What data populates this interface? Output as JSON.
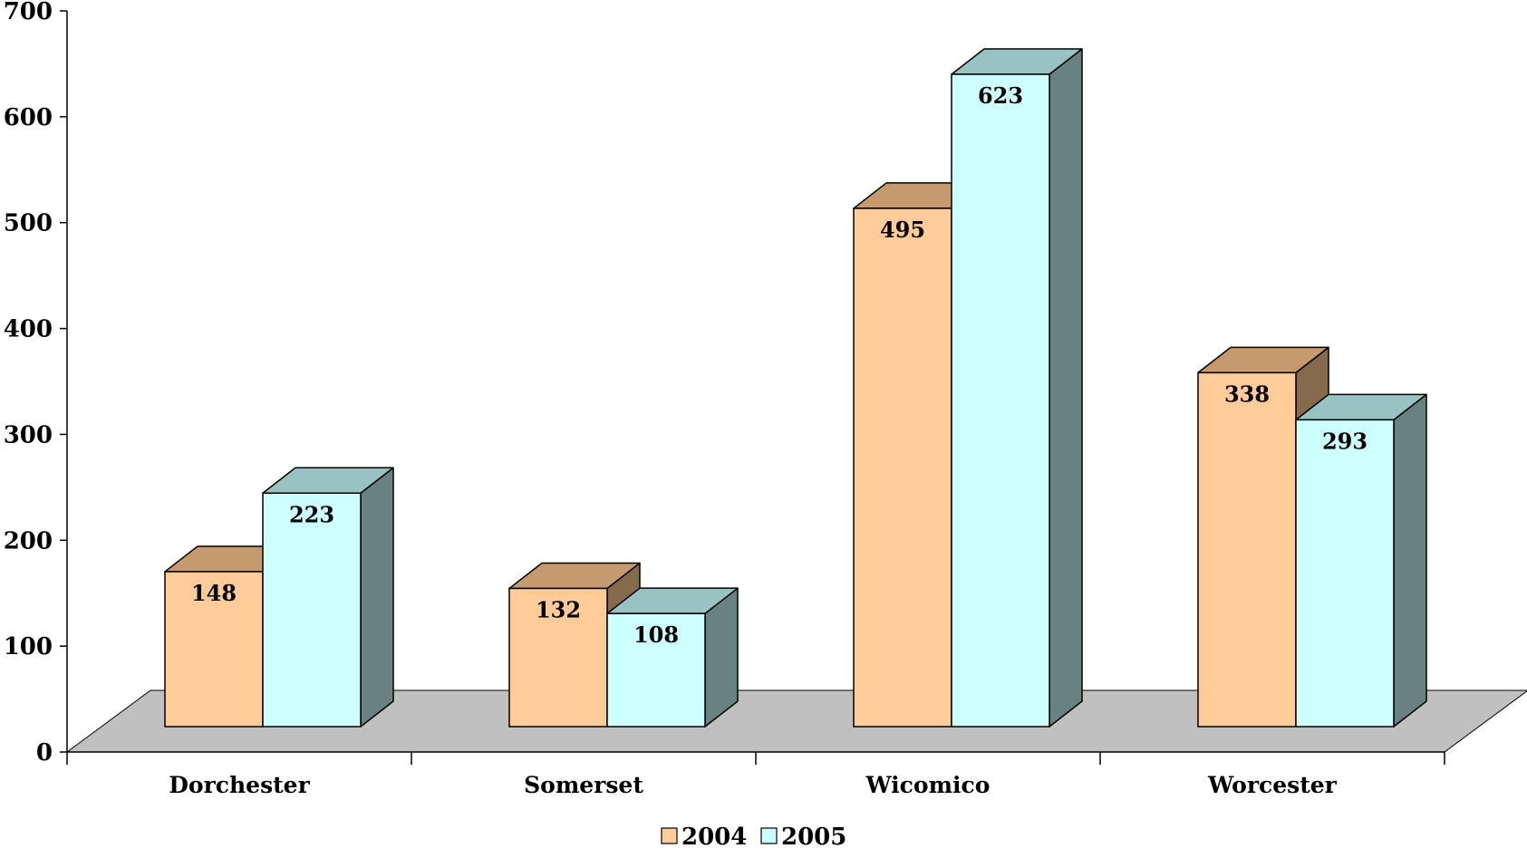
{
  "chart_data": {
    "type": "bar",
    "title": "",
    "xlabel": "",
    "ylabel": "",
    "categories": [
      "Dorchester",
      "Somerset",
      "Wicomico",
      "Worcester"
    ],
    "series": [
      {
        "name": "2004",
        "values": [
          148,
          132,
          495,
          338
        ],
        "color": "#FFCC99",
        "top_color": "#C49A6E",
        "side_color": "#856A4C"
      },
      {
        "name": "2005",
        "values": [
          223,
          108,
          623,
          293
        ],
        "color": "#CCFFFF",
        "top_color": "#99C2C2",
        "side_color": "#688282"
      }
    ],
    "ylim": [
      0,
      700
    ],
    "yticks": [
      0,
      100,
      200,
      300,
      400,
      500,
      600,
      700
    ],
    "ytick_labels": [
      "0",
      "100",
      "200",
      "300",
      "400",
      "500",
      "600",
      "700"
    ],
    "data_labels": true,
    "grid": false,
    "legend_position": "bottom-center",
    "floor_color": "#C0C0C0",
    "bar_3d": true
  }
}
